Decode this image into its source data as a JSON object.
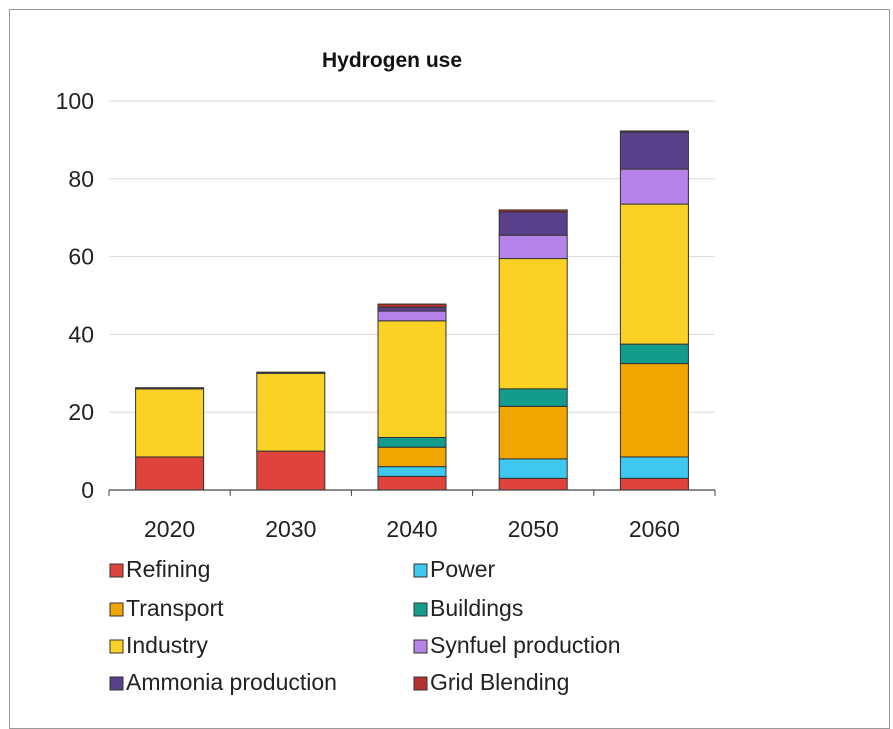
{
  "chart_data": {
    "type": "bar",
    "stacked": true,
    "title": "Hydrogen use",
    "xlabel": "",
    "ylabel": "",
    "ylim": [
      0,
      100
    ],
    "yticks": [
      0,
      20,
      40,
      60,
      80,
      100
    ],
    "grid": true,
    "legend_position": "bottom",
    "categories": [
      "2020",
      "2030",
      "2040",
      "2050",
      "2060"
    ],
    "series": [
      {
        "name": "Refining",
        "color": "#e0423c",
        "values": [
          8.5,
          10.0,
          3.5,
          3.0,
          3.0
        ]
      },
      {
        "name": "Power",
        "color": "#3fc8ef",
        "values": [
          0,
          0,
          2.5,
          5.0,
          5.5
        ]
      },
      {
        "name": "Transport",
        "color": "#f0a500",
        "values": [
          0,
          0,
          5.0,
          13.5,
          24.0
        ]
      },
      {
        "name": "Buildings",
        "color": "#139c8c",
        "values": [
          0,
          0,
          2.5,
          4.5,
          5.0
        ]
      },
      {
        "name": "Industry",
        "color": "#fcd126",
        "values": [
          17.5,
          20.0,
          30.0,
          33.5,
          36.0
        ]
      },
      {
        "name": "Synfuel production",
        "color": "#b583ea",
        "values": [
          0,
          0,
          2.5,
          6.0,
          9.0
        ]
      },
      {
        "name": "Ammonia production",
        "color": "#5a3f8a",
        "values": [
          0.3,
          0.3,
          1.0,
          6.0,
          9.5
        ]
      },
      {
        "name": "Grid Blending",
        "color": "#b5322e",
        "values": [
          0,
          0,
          0.8,
          0.5,
          0.3
        ]
      }
    ]
  }
}
